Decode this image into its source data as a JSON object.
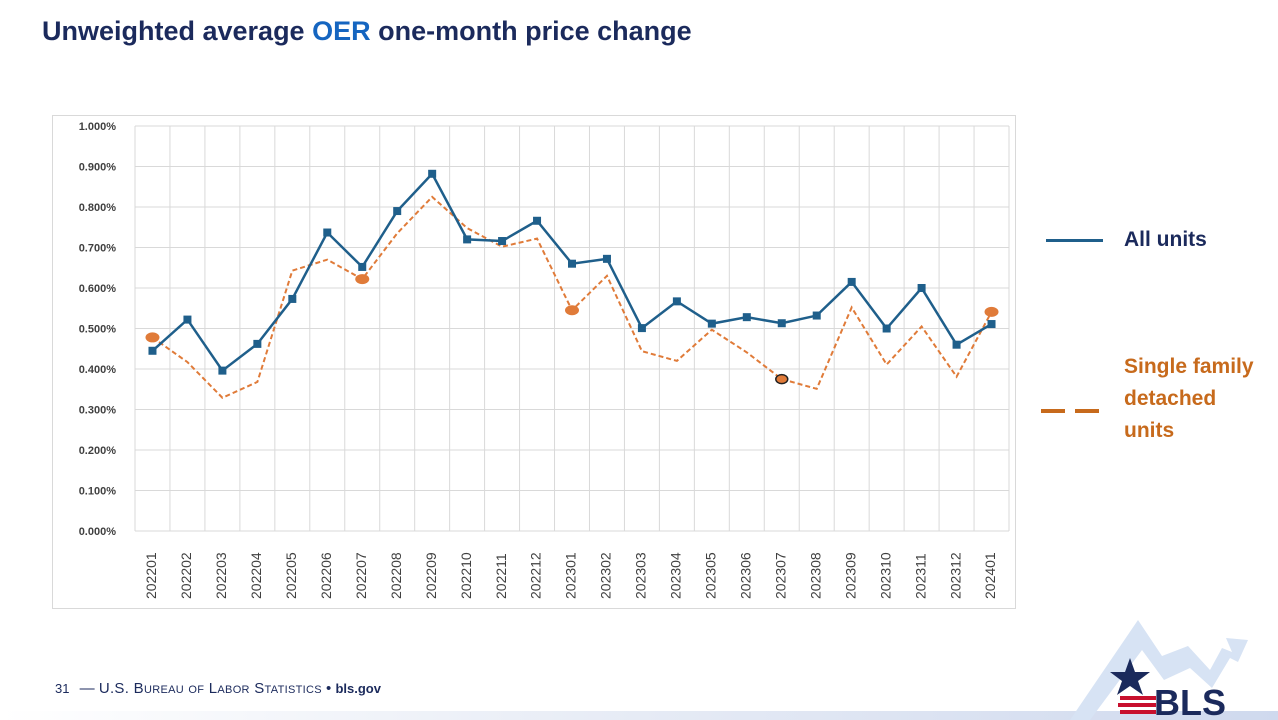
{
  "page": {
    "title_prefix": "Unweighted average ",
    "title_accent": "OER",
    "title_suffix": " one-month price change",
    "page_number": "31",
    "footer_dash": "—",
    "agency": "U.S. Bureau of Labor Statistics",
    "bullet": "•",
    "site": "bls.gov",
    "logo_text": "BLS"
  },
  "colors": {
    "title": "#1b2a5c",
    "accent": "#1565c0",
    "all_units": "#1f5f8b",
    "single_family": "#e07b39",
    "single_family_legend": "#c76a1c",
    "grid": "#d9d9d9"
  },
  "legend": {
    "all_units": "All units",
    "single_family": "Single family detached units"
  },
  "chart_data": {
    "type": "line",
    "title": "Unweighted average OER one-month price change",
    "xlabel": "",
    "ylabel": "",
    "x": [
      "202201",
      "202202",
      "202203",
      "202204",
      "202205",
      "202206",
      "202207",
      "202208",
      "202209",
      "202210",
      "202211",
      "202212",
      "202301",
      "202302",
      "202303",
      "202304",
      "202305",
      "202306",
      "202307",
      "202308",
      "202309",
      "202310",
      "202311",
      "202312",
      "202401"
    ],
    "ylim": [
      0,
      1.0
    ],
    "yticks": [
      "0.000%",
      "0.100%",
      "0.200%",
      "0.300%",
      "0.400%",
      "0.500%",
      "0.600%",
      "0.700%",
      "0.800%",
      "0.900%",
      "1.000%"
    ],
    "grid": true,
    "legend_position": "right",
    "series": [
      {
        "name": "All units",
        "style": "solid-square-markers",
        "values": [
          0.445,
          0.522,
          0.396,
          0.462,
          0.573,
          0.737,
          0.652,
          0.79,
          0.882,
          0.72,
          0.716,
          0.766,
          0.66,
          0.672,
          0.501,
          0.567,
          0.512,
          0.528,
          0.513,
          0.532,
          0.615,
          0.5,
          0.6,
          0.46,
          0.511
        ]
      },
      {
        "name": "Single family detached units",
        "style": "dashed",
        "values": [
          0.478,
          0.417,
          0.329,
          0.368,
          0.643,
          0.67,
          0.622,
          0.735,
          0.825,
          0.748,
          0.702,
          0.722,
          0.545,
          0.63,
          0.444,
          0.42,
          0.497,
          0.441,
          0.375,
          0.351,
          0.552,
          0.411,
          0.505,
          0.381,
          0.541
        ],
        "highlighted_points": [
          "202201",
          "202207",
          "202301",
          "202307",
          "202401"
        ]
      }
    ]
  }
}
